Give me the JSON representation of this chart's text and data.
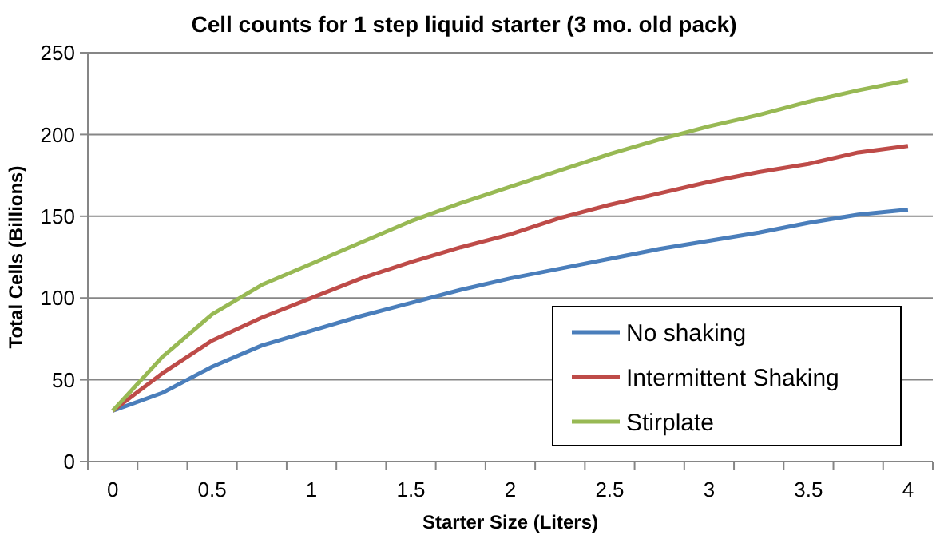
{
  "chart_data": {
    "type": "line",
    "title": "Cell counts for 1 step liquid starter (3 mo. old pack)",
    "xlabel": "Starter Size (Liters)",
    "ylabel": "Total Cells (Billions)",
    "categories": [
      "0",
      null,
      "0.5",
      null,
      "1",
      null,
      "1.5",
      null,
      "2",
      null,
      "2.5",
      null,
      "3",
      null,
      "3.5",
      null,
      "4"
    ],
    "series": [
      {
        "name": "No shaking",
        "color": "#4a7ebb",
        "values": [
          31,
          42,
          58,
          71,
          80,
          89,
          97,
          105,
          112,
          118,
          124,
          130,
          135,
          140,
          146,
          151,
          154
        ]
      },
      {
        "name": "Intermittent Shaking",
        "color": "#be4b48",
        "values": [
          31,
          54,
          74,
          88,
          100,
          112,
          122,
          131,
          139,
          149,
          157,
          164,
          171,
          177,
          182,
          189,
          193
        ]
      },
      {
        "name": "Stirplate",
        "color": "#98b954",
        "values": [
          31,
          64,
          90,
          108,
          121,
          134,
          147,
          158,
          168,
          178,
          188,
          197,
          205,
          212,
          220,
          227,
          233
        ]
      }
    ],
    "ylim": [
      0,
      250
    ],
    "yticks": [
      0,
      50,
      100,
      150,
      200,
      250
    ],
    "grid": "y",
    "legend": "bottom right",
    "marker": "none",
    "line_style": "solid"
  }
}
